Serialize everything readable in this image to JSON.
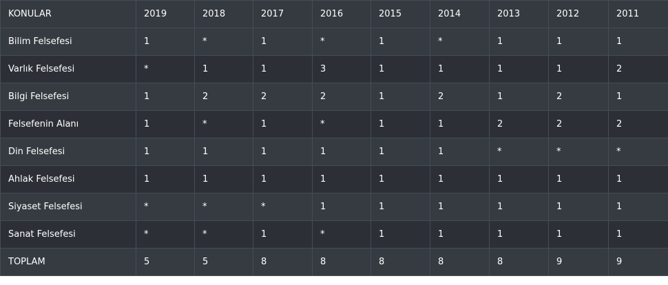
{
  "table": {
    "headers": [
      "KONULAR",
      "2019",
      "2018",
      "2017",
      "2016",
      "2015",
      "2014",
      "2013",
      "2012",
      "2011"
    ],
    "rows": [
      [
        "Bilim Felsefesi",
        "1",
        "*",
        "1",
        "*",
        "1",
        "*",
        "1",
        "1",
        "1"
      ],
      [
        "Varlık Felsefesi",
        "*",
        "1",
        "1",
        "3",
        "1",
        "1",
        "1",
        "1",
        "2"
      ],
      [
        "Bilgi Felsefesi",
        "1",
        "2",
        "2",
        "2",
        "1",
        "2",
        "1",
        "2",
        "1"
      ],
      [
        "Felsefenin Alanı",
        "1",
        "*",
        "1",
        "*",
        "1",
        "1",
        "2",
        "2",
        "2"
      ],
      [
        "Din Felsefesi",
        "1",
        "1",
        "1",
        "1",
        "1",
        "1",
        "*",
        "*",
        "*"
      ],
      [
        "Ahlak Felsefesi",
        "1",
        "1",
        "1",
        "1",
        "1",
        "1",
        "1",
        "1",
        "1"
      ],
      [
        "Siyaset Felsefesi",
        "*",
        "*",
        "*",
        "1",
        "1",
        "1",
        "1",
        "1",
        "1"
      ],
      [
        "Sanat Felsefesi",
        "*",
        "*",
        "1",
        "*",
        "1",
        "1",
        "1",
        "1",
        "1"
      ],
      [
        "TOPLAM",
        "5",
        "5",
        "8",
        "8",
        "8",
        "8",
        "8",
        "9",
        "9"
      ]
    ]
  },
  "colors": {
    "header_bg": "#343a40",
    "row_odd_bg": "#353b41",
    "row_even_bg": "#2c3036",
    "border": "#454d55",
    "text": "#ffffff"
  }
}
